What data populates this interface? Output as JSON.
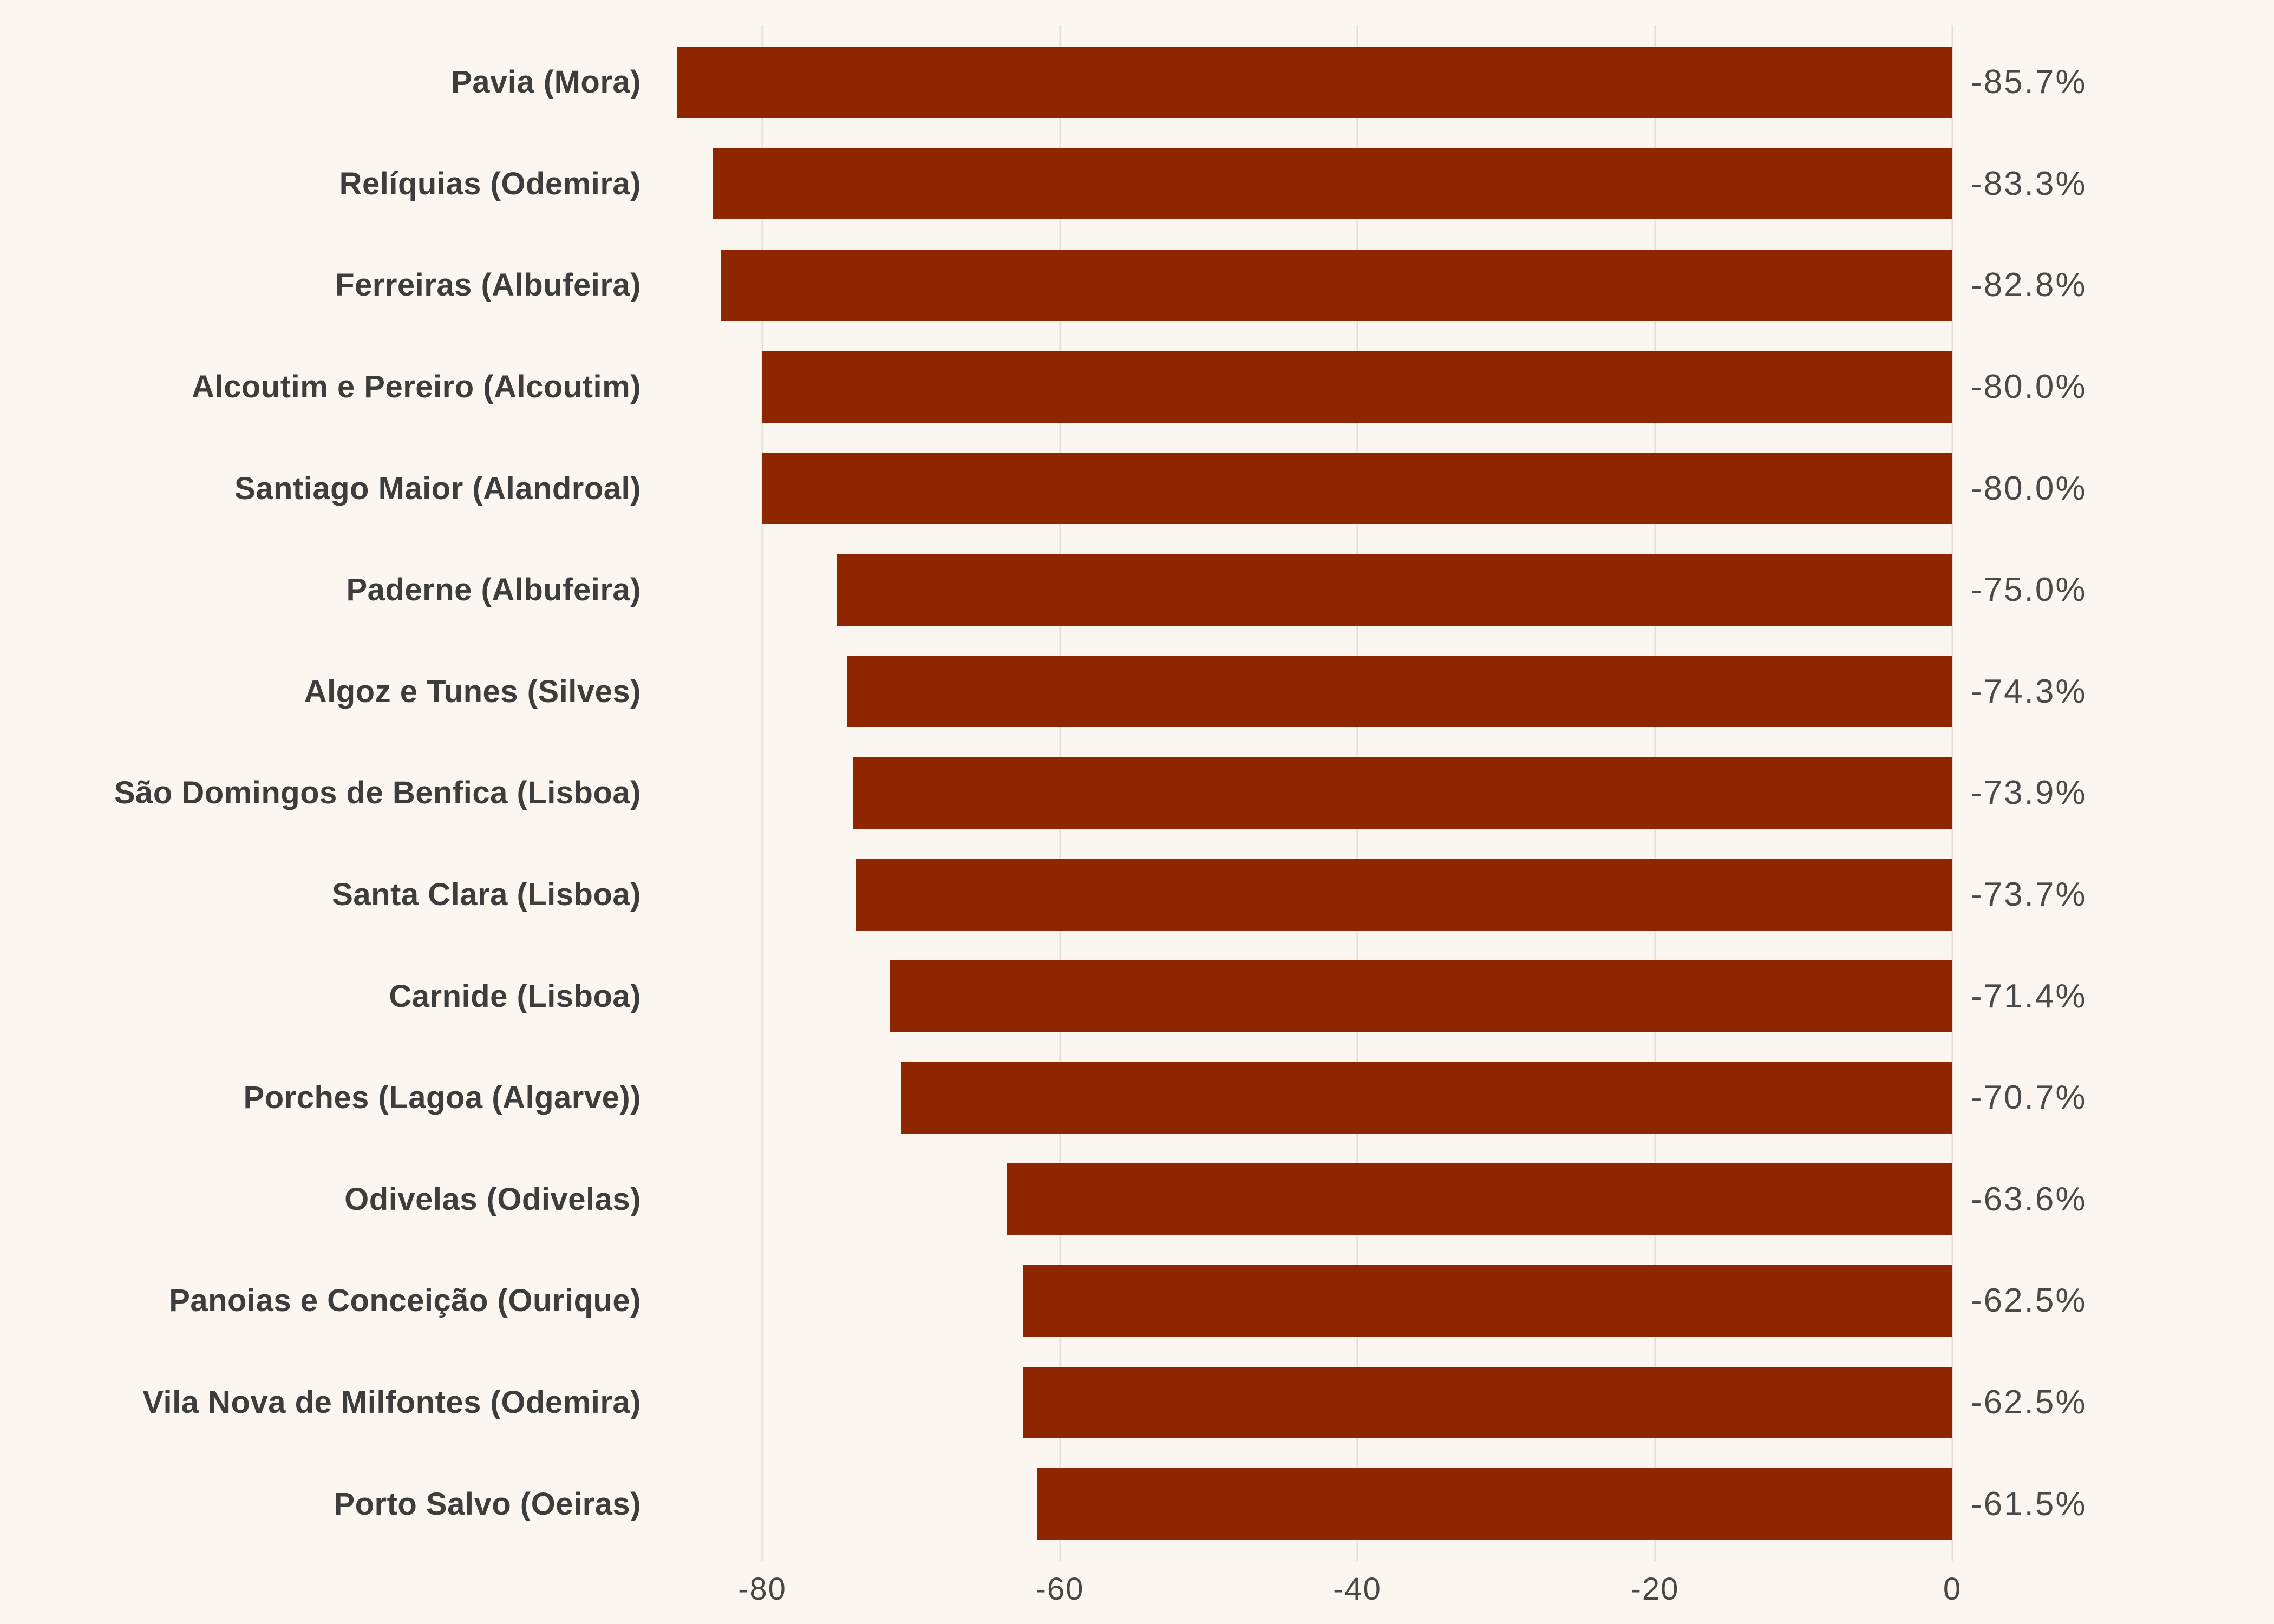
{
  "chart_data": {
    "type": "bar",
    "orientation": "horizontal",
    "title": "",
    "categories": [
      "Pavia (Mora)",
      "Relíquias (Odemira)",
      "Ferreiras (Albufeira)",
      "Alcoutim e Pereiro (Alcoutim)",
      "Santiago Maior (Alandroal)",
      "Paderne (Albufeira)",
      "Algoz e Tunes (Silves)",
      "São Domingos de Benfica (Lisboa)",
      "Santa Clara (Lisboa)",
      "Carnide (Lisboa)",
      "Porches (Lagoa (Algarve))",
      "Odivelas (Odivelas)",
      "Panoias e Conceição (Ourique)",
      "Vila Nova de Milfontes (Odemira)",
      "Porto Salvo (Oeiras)"
    ],
    "values": [
      -85.7,
      -83.3,
      -82.8,
      -80.0,
      -80.0,
      -75.0,
      -74.3,
      -73.9,
      -73.7,
      -71.4,
      -70.7,
      -63.6,
      -62.5,
      -62.5,
      -61.5
    ],
    "value_labels": [
      "-85.7%",
      "-83.3%",
      "-82.8%",
      "-80.0%",
      "-80.0%",
      "-75.0%",
      "-74.3%",
      "-73.9%",
      "-73.7%",
      "-71.4%",
      "-70.7%",
      "-63.6%",
      "-62.5%",
      "-62.5%",
      "-61.5%"
    ],
    "x_ticks": [
      -80,
      -60,
      -40,
      -20,
      0
    ],
    "x_tick_labels": [
      "-80",
      "-60",
      "-40",
      "-20",
      "0"
    ],
    "xlim": [
      -87.6,
      0
    ],
    "xlabel": "",
    "ylabel": "",
    "grid": "vertical-gridlines",
    "legend": false
  },
  "colors": {
    "background": "#FBF7F0",
    "bar": "#8E2601",
    "category_label": "#3D3D3D",
    "value_label": "#4A4A4A",
    "tick_label": "#474747",
    "gridline": "#E2DFD8"
  }
}
